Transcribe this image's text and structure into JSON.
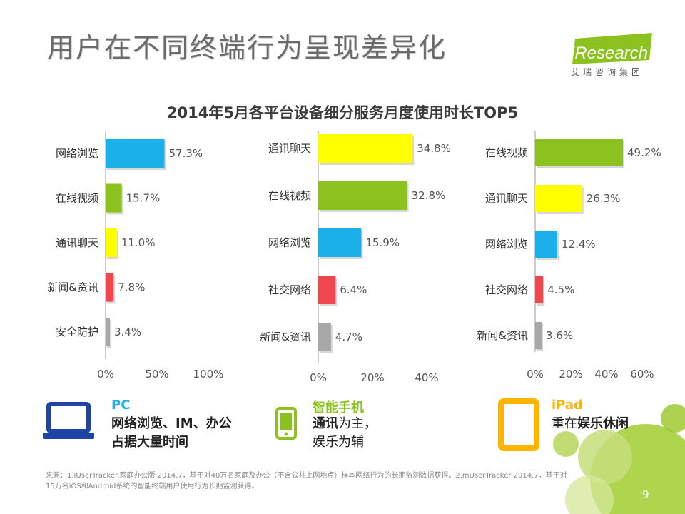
{
  "slide": {
    "title": "用户在不同终端行为呈现差异化",
    "logo_text": "iResearch",
    "logo_tagline": "艾瑞咨询集团",
    "chart_title": "2014年5月各平台设备细分服务月度使用时长TOP5",
    "page_number": "9",
    "source_line1": "来源：1.iUserTracker.家庭办公版 2014.7，基于对40万名家庭及办公（不含公共上网地点）样本网络行为的长期监测数据获得。2.mUserTracker 2014.7，基于对",
    "source_line2": "15万名iOS和Android系统的智能终端用户使用行为长期监测获得。"
  },
  "colors": {
    "blue": "#1bb0ea",
    "green": "#8cc21f",
    "yellow": "#ffff00",
    "red": "#f0474f",
    "gray": "#a8a8a8",
    "pc_blue": "#1e44a8",
    "phone_green": "#8cc21f",
    "ipad_orange": "#ffb400"
  },
  "chart_data": [
    {
      "type": "bar",
      "orientation": "horizontal",
      "device": "PC",
      "categories": [
        "网络浏览",
        "在线视频",
        "通讯聊天",
        "新闻&资讯",
        "安全防护"
      ],
      "values": [
        57.3,
        15.7,
        11.0,
        7.8,
        3.4
      ],
      "value_labels": [
        "57.3%",
        "15.7%",
        "11.0%",
        "7.8%",
        "3.4%"
      ],
      "bar_colors": [
        "blue",
        "green",
        "yellow",
        "red",
        "gray"
      ],
      "xlim": [
        0,
        100
      ],
      "ticks": [
        "0%",
        "50%",
        "100%"
      ]
    },
    {
      "type": "bar",
      "orientation": "horizontal",
      "device": "智能手机",
      "categories": [
        "通讯聊天",
        "在线视频",
        "网络浏览",
        "社交网络",
        "新闻&资讯"
      ],
      "values": [
        34.8,
        32.8,
        15.9,
        6.4,
        4.7
      ],
      "value_labels": [
        "34.8%",
        "32.8%",
        "15.9%",
        "6.4%",
        "4.7%"
      ],
      "bar_colors": [
        "yellow",
        "green",
        "blue",
        "red",
        "gray"
      ],
      "xlim": [
        0,
        40
      ],
      "ticks": [
        "0%",
        "20%",
        "40%"
      ]
    },
    {
      "type": "bar",
      "orientation": "horizontal",
      "device": "iPad",
      "categories": [
        "在线视频",
        "通讯聊天",
        "网络浏览",
        "社交网络",
        "新闻&资讯"
      ],
      "values": [
        49.2,
        26.3,
        12.4,
        4.5,
        3.6
      ],
      "value_labels": [
        "49.2%",
        "26.3%",
        "12.4%",
        "4.5%",
        "3.6%"
      ],
      "bar_colors": [
        "green",
        "yellow",
        "blue",
        "red",
        "gray"
      ],
      "xlim": [
        0,
        60
      ],
      "ticks": [
        "0%",
        "20%",
        "40%",
        "60%"
      ]
    }
  ],
  "devices": {
    "pc": {
      "title": "PC",
      "line1": "网络浏览、IM、办公",
      "line2": "占据大量时间",
      "icon": "laptop-icon"
    },
    "phone": {
      "title": "智能手机",
      "line1_bold": "通讯",
      "line1_rest": "为主，",
      "line2": "娱乐为辅",
      "icon": "smartphone-icon"
    },
    "ipad": {
      "title": "iPad",
      "line1_rest": "重在",
      "line1_bold": "娱乐休闲",
      "icon": "tablet-icon"
    }
  }
}
